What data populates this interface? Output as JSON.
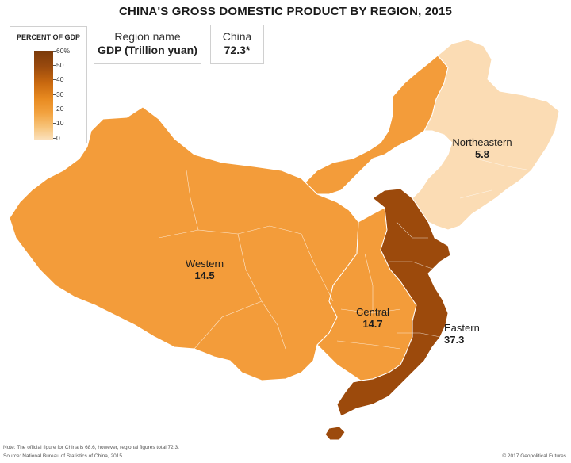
{
  "title": "CHINA'S GROSS DOMESTIC PRODUCT BY REGION, 2015",
  "legend": {
    "title": "PERCENT OF GDP",
    "ticks": [
      "60%",
      "50",
      "40",
      "30",
      "20",
      "10",
      "0"
    ]
  },
  "key": {
    "region_name": "Region name",
    "gdp_unit": "GDP (Trillion yuan)",
    "country": "China",
    "country_value": "72.3*"
  },
  "regions": {
    "northeastern": {
      "name": "Northeastern",
      "value": "5.8",
      "color": "#fbdcb4"
    },
    "western": {
      "name": "Western",
      "value": "14.5",
      "color": "#f39c3a"
    },
    "central": {
      "name": "Central",
      "value": "14.7",
      "color": "#f39c3a"
    },
    "eastern": {
      "name": "Eastern",
      "value": "37.3",
      "color": "#9c4a0c"
    }
  },
  "footer": {
    "note": "Note: The official figure for China is 68.6, however, regional figures total 72.3.",
    "source": "Source: National Bureau of Statistics of China, 2015",
    "credit": "© 2017 Geopolitical Futures"
  }
}
